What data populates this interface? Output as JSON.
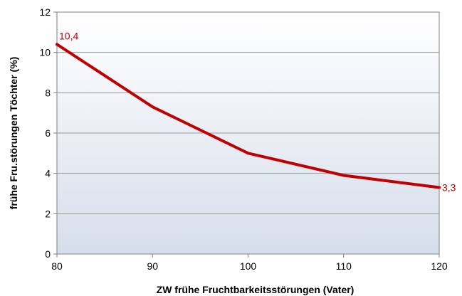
{
  "chart_data": {
    "type": "line",
    "xlabel": "ZW frühe Fruchtbarkeitsstörungen (Vater)",
    "ylabel": "frühe Fru.störungen Töchter (%)",
    "xlim": [
      80,
      120
    ],
    "ylim": [
      0,
      12
    ],
    "x_ticks": [
      "80",
      "90",
      "100",
      "110",
      "120"
    ],
    "y_ticks": [
      "0",
      "2",
      "4",
      "6",
      "8",
      "10",
      "12"
    ],
    "grid": true,
    "series": [
      {
        "x": [
          80,
          90,
          100,
          110,
          120
        ],
        "y": [
          10.4,
          7.3,
          5.0,
          3.9,
          3.3
        ],
        "color": "#c00000"
      }
    ],
    "data_labels": [
      {
        "x": 80,
        "y": 10.4,
        "text": "10,4"
      },
      {
        "x": 120,
        "y": 3.3,
        "text": "3,3"
      }
    ]
  }
}
